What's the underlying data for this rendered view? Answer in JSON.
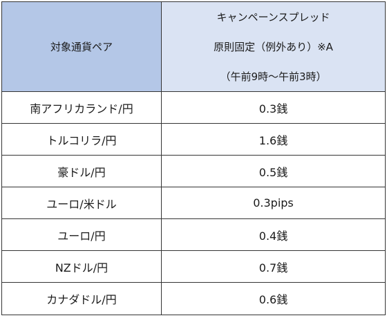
{
  "table": {
    "header": {
      "pair_label": "対象通貨ペア",
      "spread_lines": [
        "キャンペーンスプレッド",
        "原則固定（例外あり）※A",
        "（午前9時～午前3時）"
      ]
    },
    "rows": [
      {
        "pair": "南アフリカランド/円",
        "spread": "0.3銭"
      },
      {
        "pair": "トルコリラ/円",
        "spread": "1.6銭"
      },
      {
        "pair": "豪ドル/円",
        "spread": "0.5銭"
      },
      {
        "pair": "ユーロ/米ドル",
        "spread": "0.3pips"
      },
      {
        "pair": "ユーロ/円",
        "spread": "0.4銭"
      },
      {
        "pair": "NZドル/円",
        "spread": "0.7銭"
      },
      {
        "pair": "カナダドル/円",
        "spread": "0.6銭"
      }
    ]
  },
  "colors": {
    "header_pair_bg": "#b4c7e7",
    "header_spread_bg": "#dae3f3",
    "border": "#333333"
  }
}
